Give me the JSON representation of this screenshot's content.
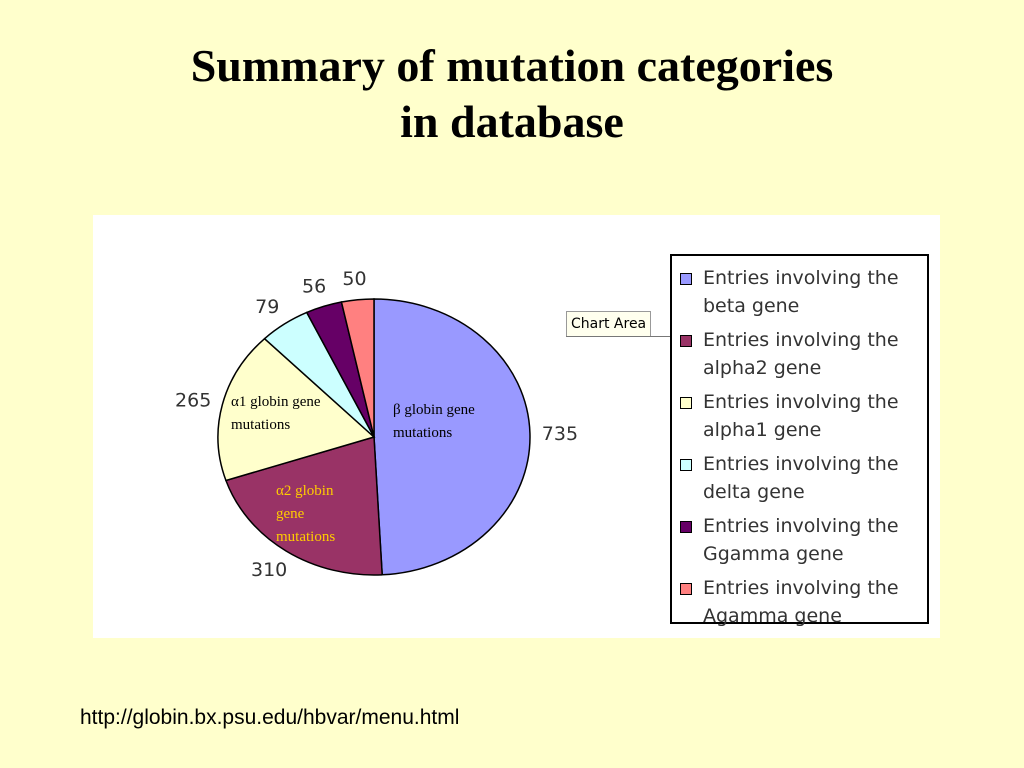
{
  "title_line1": "Summary of mutation categories",
  "title_line2": "in database",
  "tooltip": "Chart Area",
  "footer_url": "http://globin.bx.psu.edu/hbvar/menu.html",
  "annotations": {
    "beta": "β globin gene mutations",
    "alpha1": "α1 globin gene mutations",
    "alpha2": "α2 globin gene mutations"
  },
  "colors": {
    "background": "#ffffcc",
    "alpha2_text": "#ffcc00"
  },
  "chart_data": {
    "type": "pie",
    "series": [
      {
        "values": [
          735,
          310,
          265,
          79,
          56,
          50
        ],
        "labels": [
          "735",
          "310",
          "265",
          "79",
          "56",
          "50"
        ],
        "legend": [
          "Entries involving the beta gene",
          "Entries involving the alpha2 gene",
          "Entries involving the alpha1 gene",
          "Entries involving the delta gene",
          "Entries involving the Ggamma gene",
          "Entries involving the Agamma gene"
        ],
        "colors": [
          "#9999ff",
          "#993366",
          "#ffffcc",
          "#ccffff",
          "#660066",
          "#ff8080"
        ]
      }
    ],
    "legend_position": "right"
  }
}
